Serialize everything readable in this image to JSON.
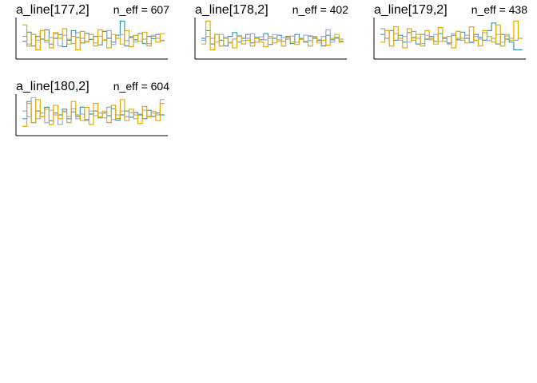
{
  "chart_data": [
    {
      "type": "line",
      "title": "a_line[177,2]",
      "annotation": "n_eff = 607",
      "series": [
        {
          "color": "#3b9ab2",
          "values": [
            0.42,
            0.66,
            0.3,
            0.55,
            0.48,
            0.72,
            0.35,
            0.5,
            0.6,
            0.28,
            0.45,
            0.7,
            0.52,
            0.38,
            0.63,
            0.47,
            0.55,
            0.33,
            0.68,
            0.5,
            0.4,
            0.58,
            0.95,
            0.3,
            0.52,
            0.46,
            0.62,
            0.36,
            0.55,
            0.49,
            0.6,
            0.44
          ]
        },
        {
          "color": "#9ea8d8",
          "values": [
            0.55,
            0.35,
            0.6,
            0.45,
            0.7,
            0.4,
            0.52,
            0.62,
            0.3,
            0.58,
            0.47,
            0.36,
            0.65,
            0.5,
            0.42,
            0.6,
            0.38,
            0.56,
            0.46,
            0.7,
            0.34,
            0.5,
            0.6,
            0.44,
            0.55,
            0.4,
            0.63,
            0.48,
            0.36,
            0.58,
            0.5,
            0.45
          ]
        },
        {
          "color": "#e1ad01",
          "values": [
            0.85,
            0.3,
            0.6,
            0.2,
            0.7,
            0.45,
            0.25,
            0.65,
            0.5,
            0.75,
            0.35,
            0.55,
            0.2,
            0.68,
            0.4,
            0.6,
            0.3,
            0.72,
            0.45,
            0.25,
            0.6,
            0.5,
            0.35,
            0.7,
            0.28,
            0.58,
            0.42,
            0.66,
            0.3,
            0.55,
            0.4,
            0.62
          ]
        }
      ]
    },
    {
      "type": "line",
      "title": "a_line[178,2]",
      "annotation": "n_eff = 402",
      "series": [
        {
          "color": "#3b9ab2",
          "values": [
            0.5,
            0.7,
            0.35,
            0.6,
            0.45,
            0.3,
            0.55,
            0.65,
            0.4,
            0.5,
            0.6,
            0.38,
            0.52,
            0.46,
            0.62,
            0.34,
            0.5,
            0.58,
            0.42,
            0.55,
            0.36,
            0.6,
            0.48,
            0.4,
            0.56,
            0.5,
            0.44,
            0.3,
            0.58,
            0.46,
            0.52,
            0.42
          ]
        },
        {
          "color": "#9ea8d8",
          "values": [
            0.45,
            0.55,
            0.5,
            0.4,
            0.6,
            0.52,
            0.38,
            0.48,
            0.58,
            0.44,
            0.5,
            0.62,
            0.4,
            0.54,
            0.46,
            0.5,
            0.6,
            0.42,
            0.52,
            0.48,
            0.56,
            0.4,
            0.5,
            0.58,
            0.44,
            0.52,
            0.46,
            0.55,
            0.72,
            0.4,
            0.5,
            0.48
          ]
        },
        {
          "color": "#e1ad01",
          "values": [
            0.35,
            0.95,
            0.2,
            0.6,
            0.3,
            0.5,
            0.4,
            0.25,
            0.55,
            0.35,
            0.45,
            0.3,
            0.5,
            0.4,
            0.28,
            0.55,
            0.38,
            0.46,
            0.3,
            0.52,
            0.4,
            0.34,
            0.5,
            0.42,
            0.3,
            0.55,
            0.38,
            0.45,
            0.32,
            0.5,
            0.6,
            0.4
          ]
        }
      ]
    },
    {
      "type": "line",
      "title": "a_line[179,2]",
      "annotation": "n_eff = 438",
      "series": [
        {
          "color": "#3b9ab2",
          "values": [
            0.6,
            0.5,
            0.7,
            0.45,
            0.58,
            0.4,
            0.65,
            0.52,
            0.35,
            0.6,
            0.48,
            0.55,
            0.42,
            0.62,
            0.5,
            0.38,
            0.58,
            0.46,
            0.66,
            0.5,
            0.4,
            0.6,
            0.52,
            0.45,
            0.7,
            0.9,
            0.35,
            0.6,
            0.48,
            0.4,
            0.2,
            0.2
          ]
        },
        {
          "color": "#9ea8d8",
          "values": [
            0.75,
            0.5,
            0.3,
            0.62,
            0.45,
            0.55,
            0.4,
            0.68,
            0.5,
            0.36,
            0.58,
            0.46,
            0.6,
            0.42,
            0.52,
            0.35,
            0.62,
            0.5,
            0.45,
            0.58,
            0.38,
            0.55,
            0.48,
            0.65,
            0.44,
            0.5,
            0.6,
            0.4,
            0.56,
            0.5,
            0.45,
            0.5
          ]
        },
        {
          "color": "#e1ad01",
          "values": [
            0.4,
            0.7,
            0.3,
            0.8,
            0.5,
            0.25,
            0.75,
            0.45,
            0.6,
            0.3,
            0.7,
            0.5,
            0.35,
            0.78,
            0.42,
            0.55,
            0.25,
            0.68,
            0.5,
            0.38,
            0.8,
            0.45,
            0.3,
            0.7,
            0.55,
            0.4,
            0.85,
            0.3,
            0.6,
            0.45,
            0.95,
            0.5
          ]
        }
      ]
    },
    {
      "type": "line",
      "title": "a_line[180,2]",
      "annotation": "n_eff = 604",
      "series": [
        {
          "color": "#3b9ab2",
          "values": [
            0.4,
            0.85,
            0.3,
            0.6,
            0.45,
            0.7,
            0.35,
            0.55,
            0.5,
            0.65,
            0.4,
            0.58,
            0.46,
            0.7,
            0.38,
            0.52,
            0.6,
            0.42,
            0.55,
            0.48,
            0.66,
            0.36,
            0.5,
            0.6,
            0.44,
            0.56,
            0.5,
            0.4,
            0.62,
            0.46,
            0.55,
            0.5
          ]
        },
        {
          "color": "#9ea8d8",
          "values": [
            0.6,
            0.45,
            0.95,
            0.4,
            0.55,
            0.3,
            0.62,
            0.5,
            0.25,
            0.58,
            0.46,
            0.66,
            0.4,
            0.52,
            0.35,
            0.6,
            0.48,
            0.55,
            0.42,
            0.7,
            0.38,
            0.5,
            0.6,
            0.45,
            0.56,
            0.4,
            0.52,
            0.62,
            0.46,
            0.55,
            0.5,
            0.9
          ]
        },
        {
          "color": "#e1ad01",
          "values": [
            0.2,
            0.8,
            0.3,
            0.9,
            0.45,
            0.65,
            0.25,
            0.75,
            0.4,
            0.6,
            0.3,
            0.85,
            0.5,
            0.35,
            0.7,
            0.25,
            0.8,
            0.45,
            0.6,
            0.3,
            0.75,
            0.4,
            0.9,
            0.35,
            0.65,
            0.5,
            0.28,
            0.72,
            0.45,
            0.6,
            0.35,
            0.8
          ]
        }
      ]
    }
  ]
}
